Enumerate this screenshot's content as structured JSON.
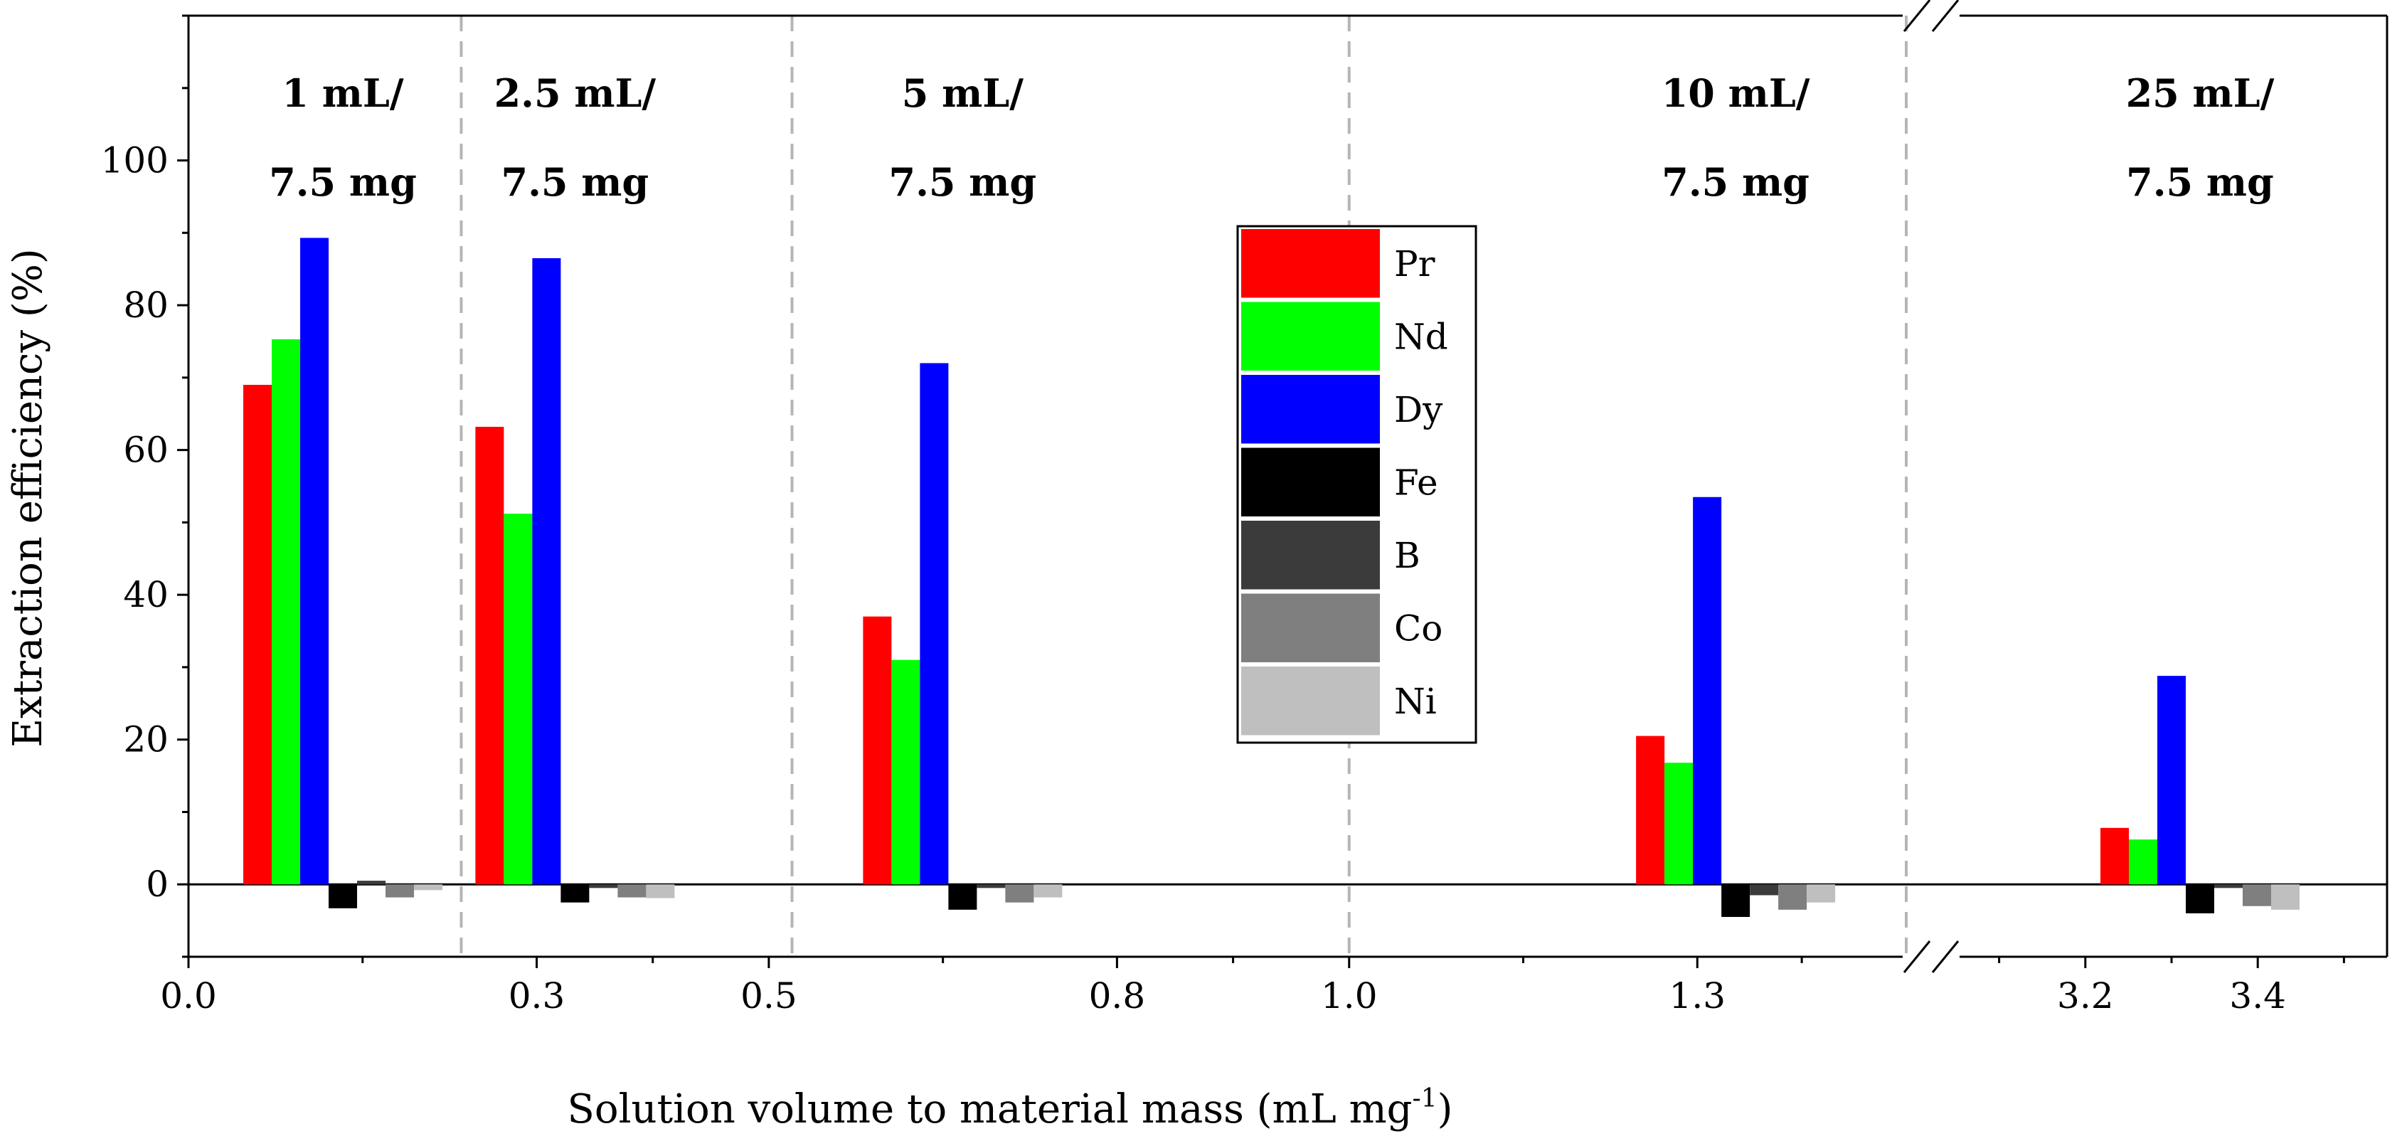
{
  "chart_data": {
    "type": "bar",
    "title": "",
    "xlabel": "Solution volume to material mass (mL mg",
    "xlabel_superscript": "-1",
    "xlabel_suffix": ")",
    "ylabel": "Extraction efficiency (%)",
    "ylim": [
      -10,
      120
    ],
    "yticks": [
      0,
      20,
      40,
      60,
      80,
      100
    ],
    "xticks_left": [
      0.0,
      0.3,
      0.5,
      0.8,
      1.0,
      1.3
    ],
    "xtick_labels_left": [
      "0.0",
      "0.3",
      "0.5",
      "0.8",
      "1.0",
      "1.3"
    ],
    "xticks_right": [
      3.2,
      3.4
    ],
    "xtick_labels_right": [
      "3.2",
      "3.4"
    ],
    "xlim_left": [
      0.0,
      1.48
    ],
    "xlim_right": [
      3.05,
      3.55
    ],
    "axis_break": "between 1.48 and 3.05",
    "divider_positions": [
      0.235,
      0.52,
      1.0,
      1.48
    ],
    "grid": false,
    "legend_position": "center",
    "colors": {
      "Pr": "#ff0000",
      "Nd": "#00ff00",
      "Dy": "#0000ff",
      "Fe": "#000000",
      "B": "#3b3b3b",
      "Co": "#7f7f7f",
      "Ni": "#bfbfbf"
    },
    "series_names": [
      "Pr",
      "Nd",
      "Dy",
      "Fe",
      "B",
      "Co",
      "Ni"
    ],
    "groups": [
      {
        "label_line1": "1 mL/",
        "label_line2": "7.5 mg",
        "x": 0.133,
        "values": [
          69,
          75.3,
          89.3,
          -3.3,
          0.5,
          -1.8,
          -0.8
        ]
      },
      {
        "label_line1": "2.5 mL/",
        "label_line2": "7.5 mg",
        "x": 0.333,
        "values": [
          63.2,
          51.2,
          86.5,
          -2.5,
          -0.5,
          -1.8,
          -1.9
        ]
      },
      {
        "label_line1": "5 mL/",
        "label_line2": "7.5 mg",
        "x": 0.667,
        "values": [
          37,
          31,
          72,
          -3.5,
          -0.5,
          -2.5,
          -1.8
        ]
      },
      {
        "label_line1": "10 mL/",
        "label_line2": "7.5 mg",
        "x": 1.333,
        "values": [
          20.5,
          16.8,
          53.5,
          -4.5,
          -1.5,
          -3.5,
          -2.5
        ]
      },
      {
        "label_line1": "25 mL/",
        "label_line2": "7.5 mg",
        "x": 3.333,
        "values": [
          7.8,
          6.2,
          28.8,
          -4,
          -0.5,
          -3,
          -3.5
        ]
      }
    ]
  }
}
